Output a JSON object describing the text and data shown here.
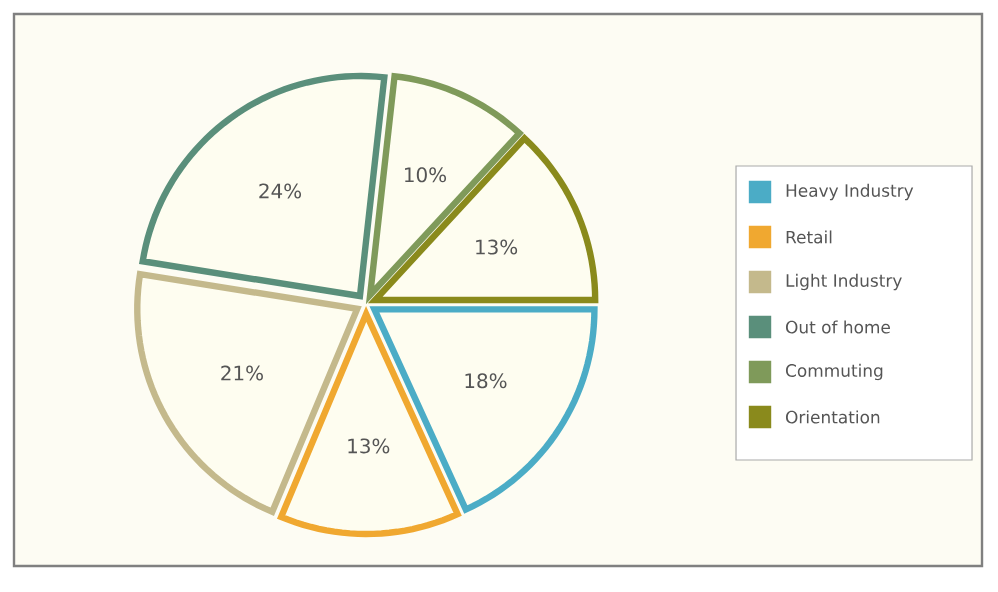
{
  "chart_data": {
    "type": "pie",
    "categories": [
      "Heavy Industry",
      "Retail",
      "Light Industry",
      "Out of home",
      "Commuting",
      "Orientation"
    ],
    "values": [
      18,
      13,
      21,
      24,
      10,
      13
    ],
    "colors": [
      "#4bacc6",
      "#f0a830",
      "#c4b98c",
      "#5a8f7b",
      "#7f9a5a",
      "#8a8a1c"
    ],
    "value_labels": [
      "18%",
      "13%",
      "21%",
      "24%",
      "10%",
      "13%"
    ],
    "legend": "right"
  }
}
